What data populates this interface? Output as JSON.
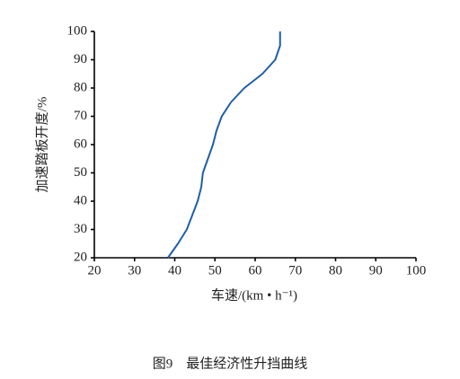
{
  "chart_data": {
    "type": "line",
    "caption": "图9　最佳经济性升挡曲线",
    "x_label": "车速/(km • h⁻¹)",
    "y_label": "加速踏板开度/%",
    "x": [
      38.3,
      40.8,
      43,
      45.7,
      46.6,
      47,
      49.5,
      50.4,
      51.7,
      54,
      57.3,
      61.8,
      65,
      66.2,
      66.2
    ],
    "series": [
      {
        "color": "#1f5fa5",
        "values": [
          20,
          25,
          30,
          40,
          45,
          50,
          60,
          65,
          70,
          75,
          80,
          85,
          90,
          95,
          100
        ]
      }
    ],
    "xlim": [
      20,
      100
    ],
    "xticks": [
      20,
      30,
      40,
      50,
      60,
      70,
      80,
      90,
      100
    ],
    "ylim": [
      20,
      100
    ],
    "yticks": [
      20,
      30,
      40,
      50,
      60,
      70,
      80,
      90,
      100
    ]
  }
}
